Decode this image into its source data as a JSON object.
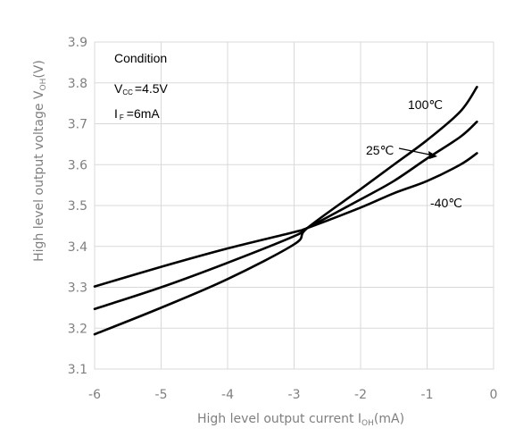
{
  "chart_data": {
    "type": "line",
    "xlabel_main": "High level output current I",
    "xlabel_sub": "OH",
    "xlabel_unit": "(mA)",
    "ylabel_main": "High level output voltage V",
    "ylabel_sub": "OH",
    "ylabel_unit": "(V)",
    "xlim": [
      -6,
      0
    ],
    "ylim": [
      3.1,
      3.9
    ],
    "xticks": [
      "-6",
      "-5",
      "-4",
      "-3",
      "-2",
      "-1",
      "0"
    ],
    "yticks": [
      "3.1",
      "3.2",
      "3.3",
      "3.4",
      "3.5",
      "3.6",
      "3.7",
      "3.8",
      "3.9"
    ],
    "grid": true,
    "series": [
      {
        "name": "100℃",
        "x": [
          -6,
          -5,
          -4,
          -3,
          -2.8,
          -2,
          -1.5,
          -1,
          -0.5,
          -0.25
        ],
        "y": [
          3.185,
          3.25,
          3.32,
          3.405,
          3.445,
          3.54,
          3.6,
          3.66,
          3.73,
          3.79
        ]
      },
      {
        "name": "25℃",
        "x": [
          -6,
          -5,
          -4,
          -3,
          -2.8,
          -2,
          -1.5,
          -1,
          -0.5,
          -0.25
        ],
        "y": [
          3.247,
          3.3,
          3.36,
          3.425,
          3.445,
          3.515,
          3.56,
          3.615,
          3.668,
          3.705
        ]
      },
      {
        "name": "-40℃",
        "x": [
          -6,
          -5,
          -4,
          -3,
          -2.8,
          -2,
          -1.5,
          -1,
          -0.5,
          -0.25
        ],
        "y": [
          3.302,
          3.35,
          3.395,
          3.435,
          3.445,
          3.495,
          3.53,
          3.56,
          3.6,
          3.628
        ]
      }
    ],
    "line_color": "#000000",
    "grid_color": "#d9d9d9",
    "tick_color": "#7f7f7f"
  },
  "annotations": {
    "condition": "Condition",
    "vcc_main": "V",
    "vcc_sub": "CC",
    "vcc_value": "=4.5V",
    "if_main": "I",
    "if_sub": "F",
    "if_value": "=6mA",
    "label_100": "100℃",
    "label_25": "25℃",
    "label_m40": "-40℃"
  }
}
